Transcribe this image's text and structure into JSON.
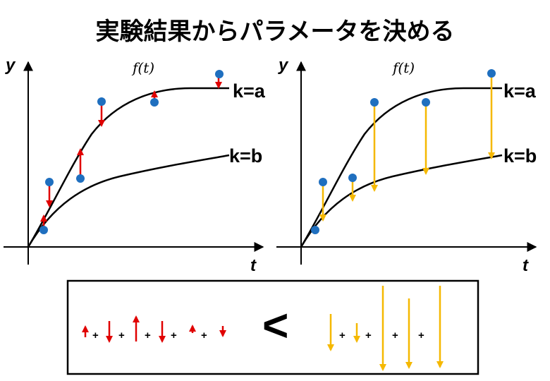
{
  "title": "実験結果からパラメータを決める",
  "y_label": "y",
  "t_label": "t",
  "function_label": "f(t)",
  "curve_a_label": "k=a",
  "curve_b_label": "k=b",
  "plus_sign": "+",
  "comparison_sign": "<",
  "colors": {
    "point": "#1f6fbf",
    "residual_a": "#e00000",
    "residual_b": "#f5b800",
    "curve": "#000000"
  },
  "icons": [
    "arrow-up-icon",
    "arrow-down-icon"
  ]
}
